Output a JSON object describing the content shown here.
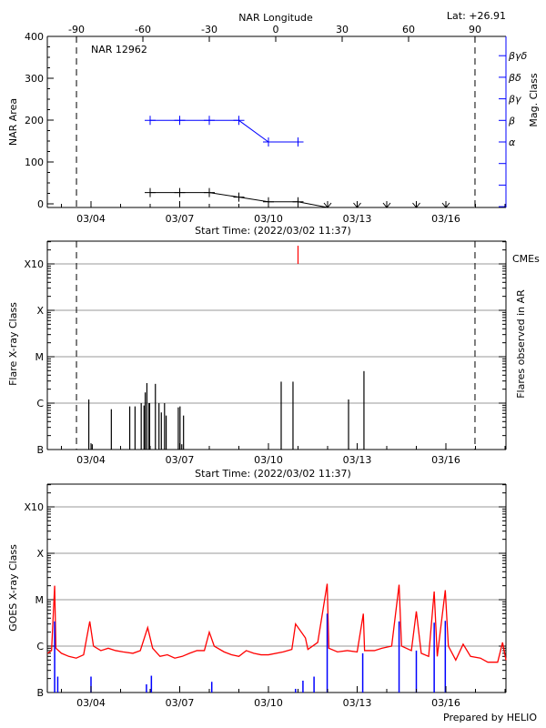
{
  "header": {
    "top_axis_label": "NAR Longitude",
    "latitude": "Lat: +26.91",
    "region_label": "NAR 12962",
    "footer": "Prepared by HELIO"
  },
  "colors": {
    "area": "#000000",
    "mag_class": "#0000ff",
    "cme": "#ff0000",
    "goes_long": "#ff0000",
    "goes_short": "#0000ff",
    "grid": "#999999"
  },
  "chart_data": [
    {
      "type": "line",
      "title": "NAR 12962",
      "xlabel": "Start Time: (2022/03/02 11:37)",
      "ylabel": "NAR Area",
      "y2label": "Mag. Class",
      "top_xlabel": "NAR Longitude",
      "top_ticks": [
        "-90",
        "-60",
        "-30",
        "0",
        "30",
        "60",
        "90"
      ],
      "limb_longitudes": [
        -90,
        90
      ],
      "x_ticks": [
        "03/04",
        "03/07",
        "03/10",
        "03/13",
        "03/16"
      ],
      "ylim": [
        0,
        400
      ],
      "y_ticks": [
        "0",
        "100",
        "200",
        "300",
        "400"
      ],
      "y2_ticks": [
        "α",
        "β",
        "βγ",
        "βδ",
        "βγδ"
      ],
      "x": [
        "03/06 00:00",
        "03/07 00:00",
        "03/08 00:00",
        "03/09 00:00",
        "03/10 00:00",
        "03/11 00:00",
        "03/12 00:00",
        "03/13 00:00",
        "03/14 00:00",
        "03/15 00:00",
        "03/16 00:00"
      ],
      "series": [
        {
          "values": [
            27,
            27,
            27,
            16,
            5,
            5,
            0,
            0,
            0,
            0,
            0
          ]
        },
        {
          "values": [
            "β",
            "β",
            "β",
            "β",
            "α",
            "α",
            null,
            null,
            null,
            null,
            null
          ]
        }
      ]
    },
    {
      "type": "bar",
      "xlabel": "Start Time: (2022/03/02 11:37)",
      "ylabel": "Flare X-ray Class",
      "y2label": "Flares observed in AR",
      "cme_label": "CMEs",
      "x_ticks": [
        "03/04",
        "03/07",
        "03/10",
        "03/13",
        "03/16"
      ],
      "y_ticks": [
        "B",
        "C",
        "M",
        "X",
        "X10"
      ],
      "scale": "log",
      "grid": true,
      "flares": [
        [
          "03/03 22:13",
          1.2e-06
        ],
        [
          "03/04 01:00",
          1.3e-07
        ],
        [
          "03/04 16:30",
          7.4e-07
        ],
        [
          "03/05 07:26",
          8.5e-07
        ],
        [
          "03/05 11:45",
          8.5e-07
        ],
        [
          "03/05 16:45",
          1e-06
        ],
        [
          "03/05 19:00",
          8.9e-07
        ],
        [
          "03/05 20:00",
          1.7e-06
        ],
        [
          "03/05 21:22",
          2.7e-06
        ],
        [
          "03/05 23:00",
          1e-06
        ],
        [
          "03/05 23:35",
          1e-06
        ],
        [
          "03/06 04:15",
          2.6e-06
        ],
        [
          "03/06 07:10",
          1e-06
        ],
        [
          "03/06 09:05",
          6.3e-07
        ],
        [
          "03/06 11:40",
          1e-06
        ],
        [
          "03/06 13:00",
          5.4e-07
        ],
        [
          "03/06 22:50",
          8.1e-07
        ],
        [
          "03/07 00:15",
          8.5e-07
        ],
        [
          "03/07 01:40",
          1.3e-07
        ],
        [
          "03/07 03:05",
          5.4e-07
        ],
        [
          "03/10 10:20",
          2.9e-06
        ],
        [
          "03/10 19:55",
          2.9e-06
        ],
        [
          "03/12 17:00",
          1.2e-06
        ],
        [
          "03/13 05:30",
          4.9e-06
        ]
      ],
      "cmes": [
        "03/11 00:00"
      ]
    },
    {
      "type": "line",
      "ylabel": "GOES X-ray Class",
      "x_ticks": [
        "03/04",
        "03/07",
        "03/10",
        "03/13",
        "03/16"
      ],
      "y_ticks": [
        "B",
        "C",
        "M",
        "X",
        "X10"
      ],
      "scale": "log",
      "grid": true,
      "series": [
        {
          "values": [
            [
              "03/02 12:45",
              7e-07
            ],
            [
              "03/02 16:00",
              8e-07
            ],
            [
              "03/02 18:30",
              2e-05
            ],
            [
              "03/02 19:30",
              9e-07
            ],
            [
              "03/03 00:00",
              7e-07
            ],
            [
              "03/03 06:00",
              6e-07
            ],
            [
              "03/03 12:00",
              5.5e-07
            ],
            [
              "03/03 18:00",
              6.5e-07
            ],
            [
              "03/03 23:00",
              3.4e-06
            ],
            [
              "03/04 02:00",
              1e-06
            ],
            [
              "03/04 08:00",
              8e-07
            ],
            [
              "03/04 14:00",
              9e-07
            ],
            [
              "03/04 20:00",
              8e-07
            ],
            [
              "03/05 02:00",
              7.5e-07
            ],
            [
              "03/05 10:00",
              7e-07
            ],
            [
              "03/05 16:00",
              8e-07
            ],
            [
              "03/05 22:00",
              2.5e-06
            ],
            [
              "03/06 02:00",
              9e-07
            ],
            [
              "03/06 08:00",
              6e-07
            ],
            [
              "03/06 14:00",
              6.5e-07
            ],
            [
              "03/06 20:00",
              5.5e-07
            ],
            [
              "03/07 02:00",
              6e-07
            ],
            [
              "03/07 08:00",
              7e-07
            ],
            [
              "03/07 14:00",
              8e-07
            ],
            [
              "03/07 20:00",
              8e-07
            ],
            [
              "03/08 00:00",
              2e-06
            ],
            [
              "03/08 04:00",
              1e-06
            ],
            [
              "03/08 12:00",
              7.5e-07
            ],
            [
              "03/08 18:00",
              6.5e-07
            ],
            [
              "03/09 00:00",
              6e-07
            ],
            [
              "03/09 06:00",
              8e-07
            ],
            [
              "03/09 12:00",
              7e-07
            ],
            [
              "03/09 18:00",
              6.5e-07
            ],
            [
              "03/10 00:00",
              6.5e-07
            ],
            [
              "03/10 12:00",
              7.5e-07
            ],
            [
              "03/10 19:00",
              8.5e-07
            ],
            [
              "03/10 22:00",
              3e-06
            ],
            [
              "03/11 06:00",
              1.5e-06
            ],
            [
              "03/11 08:00",
              8.5e-07
            ],
            [
              "03/11 16:00",
              1.2e-06
            ],
            [
              "03/11 23:40",
              2.2e-05
            ],
            [
              "03/12 01:00",
              9e-07
            ],
            [
              "03/12 08:00",
              7.5e-07
            ],
            [
              "03/12 16:00",
              8e-07
            ],
            [
              "03/13 00:00",
              7.5e-07
            ],
            [
              "03/13 05:00",
              5e-06
            ],
            [
              "03/13 06:00",
              8e-07
            ],
            [
              "03/13 14:00",
              8e-07
            ],
            [
              "03/13 20:00",
              9e-07
            ],
            [
              "03/14 04:00",
              1e-06
            ],
            [
              "03/14 10:00",
              2.1e-05
            ],
            [
              "03/14 12:00",
              1e-06
            ],
            [
              "03/14 20:00",
              8e-07
            ],
            [
              "03/15 00:00",
              5.6e-06
            ],
            [
              "03/15 04:00",
              7e-07
            ],
            [
              "03/15 10:00",
              6e-07
            ],
            [
              "03/15 14:30",
              1.5e-05
            ],
            [
              "03/15 17:00",
              6e-07
            ],
            [
              "03/15 23:30",
              1.6e-05
            ],
            [
              "03/16 02:00",
              1e-06
            ],
            [
              "03/16 08:00",
              5e-07
            ],
            [
              "03/16 14:00",
              1.1e-06
            ],
            [
              "03/16 20:00",
              6e-07
            ],
            [
              "03/17 04:00",
              5.5e-07
            ],
            [
              "03/17 10:00",
              4.5e-07
            ],
            [
              "03/17 18:00",
              4.5e-07
            ],
            [
              "03/17 22:00",
              1.2e-06
            ],
            [
              "03/18 01:00",
              5e-07
            ]
          ]
        },
        {
          "values": [
            [
              "03/02 18:30",
              3.4e-06
            ],
            [
              "03/02 21:00",
              2.2e-07
            ],
            [
              "03/04 00:00",
              2.2e-07
            ],
            [
              "03/05 21:00",
              1.5e-07
            ],
            [
              "03/06 01:00",
              2.3e-07
            ],
            [
              "03/08 02:00",
              1.7e-07
            ],
            [
              "03/10 22:00",
              1.2e-07
            ],
            [
              "03/11 04:00",
              1.8e-07
            ],
            [
              "03/11 13:00",
              2.2e-07
            ],
            [
              "03/11 23:40",
              5e-06
            ],
            [
              "03/13 04:30",
              7e-07
            ],
            [
              "03/14 10:00",
              3.4e-06
            ],
            [
              "03/15 00:00",
              8e-07
            ],
            [
              "03/15 14:30",
              3.2e-06
            ],
            [
              "03/15 23:30",
              3.5e-06
            ]
          ]
        }
      ]
    }
  ]
}
